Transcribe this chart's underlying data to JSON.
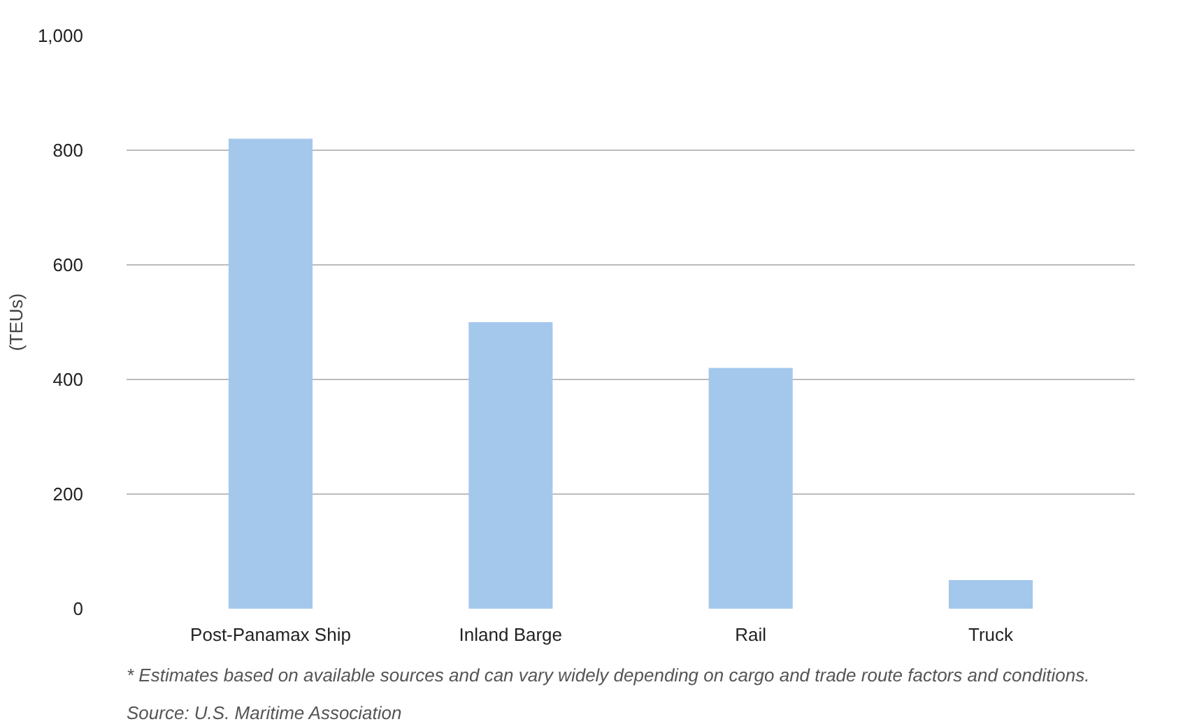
{
  "chart_data": {
    "type": "bar",
    "ylabel": "(TEUs)",
    "categories": [
      "Post-Panamax Ship",
      "Inland Barge",
      "Rail",
      "Truck"
    ],
    "values": [
      820,
      500,
      420,
      50
    ],
    "color": "#a4c8ec",
    "ylim": [
      0,
      1000
    ],
    "yticks": [
      0,
      200,
      400,
      600,
      800,
      {
        "value": 1000,
        "label": "1,000"
      }
    ],
    "grid": "y",
    "annotations": [
      "* Estimates based on available sources and can vary widely depending on cargo and trade route factors and conditions.",
      "Source: U.S. Maritime Association"
    ]
  }
}
